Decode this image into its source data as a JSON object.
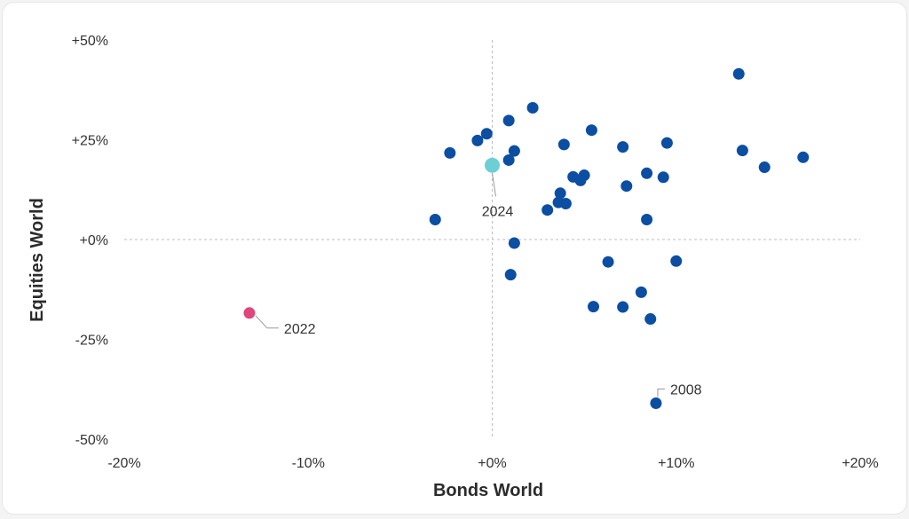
{
  "chart_data": {
    "type": "scatter",
    "xlabel": "Bonds World",
    "ylabel": "Equities World",
    "xlim": [
      -20,
      20
    ],
    "ylim": [
      -50,
      50
    ],
    "x_ticks": [
      "-20%",
      "-10%",
      "+0%",
      "+10%",
      "+20%"
    ],
    "y_ticks": [
      "+50%",
      "+25%",
      "+0%",
      "-25%",
      "-50%"
    ],
    "grid": "zero-lines-dashed",
    "colors": {
      "points": "#0b4ea2",
      "2022": "#e0457b",
      "2024": "#6ccfd6",
      "zero_line": "#bdbdbd"
    },
    "points": [
      [
        13.4,
        41.5
      ],
      [
        2.2,
        33.0
      ],
      [
        0.9,
        29.8
      ],
      [
        -0.3,
        26.5
      ],
      [
        -0.8,
        24.8
      ],
      [
        -2.3,
        21.7
      ],
      [
        1.2,
        22.2
      ],
      [
        0.9,
        19.9
      ],
      [
        5.4,
        27.4
      ],
      [
        3.9,
        23.8
      ],
      [
        7.1,
        23.2
      ],
      [
        9.5,
        24.2
      ],
      [
        13.6,
        22.3
      ],
      [
        16.9,
        20.6
      ],
      [
        14.8,
        18.1
      ],
      [
        8.4,
        16.6
      ],
      [
        9.3,
        15.6
      ],
      [
        4.4,
        15.7
      ],
      [
        5.0,
        16.1
      ],
      [
        4.8,
        14.8
      ],
      [
        7.3,
        13.4
      ],
      [
        3.7,
        11.6
      ],
      [
        3.6,
        9.3
      ],
      [
        4.0,
        9.0
      ],
      [
        3.0,
        7.4
      ],
      [
        -3.1,
        5.0
      ],
      [
        8.4,
        5.0
      ],
      [
        1.2,
        -0.9
      ],
      [
        6.3,
        -5.6
      ],
      [
        10.0,
        -5.4
      ],
      [
        1.0,
        -8.8
      ],
      [
        8.1,
        -13.2
      ],
      [
        5.5,
        -16.8
      ],
      [
        7.1,
        -16.9
      ],
      [
        8.6,
        -19.9
      ],
      [
        8.9,
        -41.0
      ]
    ],
    "highlighted": [
      {
        "label": "2022",
        "x": -13.2,
        "y": -18.4
      },
      {
        "label": "2024",
        "x": 0.0,
        "y": 18.6
      }
    ],
    "annotations": [
      {
        "label": "2008",
        "x": 8.9,
        "y": -41.0
      }
    ]
  }
}
